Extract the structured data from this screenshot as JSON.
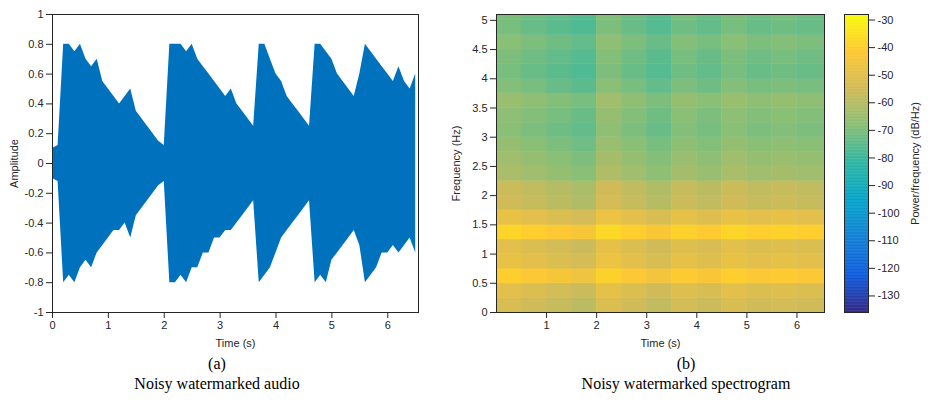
{
  "chart_data": [
    {
      "type": "area",
      "label": "(a)",
      "caption": "Noisy watermarked audio",
      "xlabel": "Time (s)",
      "ylabel": "Amplitude",
      "color": "#0072bd",
      "grid": false,
      "xlim": [
        0,
        6.55
      ],
      "xticks": [
        0,
        1,
        2,
        3,
        4,
        5,
        6
      ],
      "ylim": [
        -1,
        1
      ],
      "yticks": [
        -1,
        -0.8,
        -0.6,
        -0.4,
        -0.2,
        0,
        0.2,
        0.4,
        0.6,
        0.8,
        1
      ],
      "x": [
        0,
        0.1,
        0.2,
        0.3,
        0.4,
        0.5,
        0.6,
        0.7,
        0.8,
        0.9,
        1.0,
        1.1,
        1.2,
        1.3,
        1.4,
        1.5,
        1.6,
        1.7,
        1.8,
        1.9,
        2.0,
        2.1,
        2.2,
        2.3,
        2.4,
        2.5,
        2.6,
        2.7,
        2.8,
        2.9,
        3.0,
        3.1,
        3.2,
        3.3,
        3.4,
        3.5,
        3.6,
        3.7,
        3.8,
        3.9,
        4.0,
        4.1,
        4.2,
        4.3,
        4.4,
        4.5,
        4.6,
        4.7,
        4.8,
        4.9,
        5.0,
        5.1,
        5.2,
        5.3,
        5.4,
        5.5,
        5.6,
        5.7,
        5.8,
        5.9,
        6.0,
        6.1,
        6.2,
        6.3,
        6.4,
        6.5
      ],
      "upper": [
        0.1,
        0.12,
        0.8,
        0.8,
        0.75,
        0.8,
        0.7,
        0.65,
        0.7,
        0.55,
        0.5,
        0.45,
        0.4,
        0.45,
        0.5,
        0.35,
        0.3,
        0.25,
        0.2,
        0.15,
        0.12,
        0.8,
        0.8,
        0.8,
        0.75,
        0.8,
        0.7,
        0.65,
        0.6,
        0.55,
        0.5,
        0.45,
        0.5,
        0.4,
        0.35,
        0.3,
        0.25,
        0.8,
        0.8,
        0.7,
        0.6,
        0.55,
        0.45,
        0.4,
        0.35,
        0.3,
        0.25,
        0.8,
        0.8,
        0.75,
        0.7,
        0.6,
        0.55,
        0.5,
        0.45,
        0.6,
        0.8,
        0.75,
        0.7,
        0.65,
        0.6,
        0.55,
        0.65,
        0.55,
        0.5,
        0.6
      ],
      "lower": [
        -0.1,
        -0.12,
        -0.8,
        -0.75,
        -0.8,
        -0.7,
        -0.65,
        -0.7,
        -0.6,
        -0.55,
        -0.5,
        -0.45,
        -0.45,
        -0.4,
        -0.5,
        -0.35,
        -0.3,
        -0.25,
        -0.2,
        -0.15,
        -0.12,
        -0.8,
        -0.8,
        -0.75,
        -0.8,
        -0.7,
        -0.7,
        -0.6,
        -0.6,
        -0.5,
        -0.5,
        -0.45,
        -0.45,
        -0.4,
        -0.35,
        -0.3,
        -0.25,
        -0.8,
        -0.75,
        -0.7,
        -0.6,
        -0.5,
        -0.45,
        -0.4,
        -0.35,
        -0.3,
        -0.25,
        -0.8,
        -0.75,
        -0.8,
        -0.65,
        -0.6,
        -0.55,
        -0.5,
        -0.45,
        -0.55,
        -0.8,
        -0.75,
        -0.7,
        -0.6,
        -0.6,
        -0.55,
        -0.6,
        -0.55,
        -0.5,
        -0.6
      ]
    },
    {
      "type": "heatmap",
      "label": "(b)",
      "caption": "Noisy watermarked spectrogram",
      "xlabel": "Time (s)",
      "ylabel": "Frequency (Hz)",
      "grid": false,
      "xlim": [
        0,
        6.55
      ],
      "xticks": [
        1,
        2,
        3,
        4,
        5,
        6
      ],
      "ylim": [
        0,
        5.1
      ],
      "yticks": [
        0,
        0.5,
        1,
        1.5,
        2,
        2.5,
        3,
        3.5,
        4,
        4.5,
        5
      ],
      "x_bins": [
        0,
        0.5,
        1.0,
        1.5,
        2.0,
        2.5,
        3.0,
        3.5,
        4.0,
        4.5,
        5.0,
        5.5,
        6.0,
        6.55
      ],
      "y_bins": [
        0,
        0.25,
        0.5,
        0.75,
        1.0,
        1.25,
        1.5,
        1.75,
        2.0,
        2.25,
        2.5,
        2.75,
        3.0,
        3.25,
        3.5,
        3.75,
        4.0,
        4.25,
        4.5,
        4.75,
        5.0,
        5.1
      ],
      "cells": [
        [
          -53,
          -55,
          -57,
          -59,
          -52,
          -55,
          -58,
          -54,
          -56,
          -53,
          -55,
          -54,
          -55
        ],
        [
          -50,
          -52,
          -54,
          -56,
          -49,
          -52,
          -55,
          -51,
          -53,
          -50,
          -52,
          -51,
          -52
        ],
        [
          -40,
          -42,
          -44,
          -46,
          -39,
          -42,
          -45,
          -41,
          -43,
          -40,
          -42,
          -41,
          -42
        ],
        [
          -48,
          -50,
          -52,
          -54,
          -47,
          -50,
          -53,
          -49,
          -51,
          -48,
          -50,
          -49,
          -50
        ],
        [
          -50,
          -52,
          -54,
          -56,
          -49,
          -52,
          -55,
          -51,
          -53,
          -50,
          -52,
          -51,
          -52
        ],
        [
          -38,
          -40,
          -42,
          -44,
          -37,
          -40,
          -43,
          -39,
          -41,
          -38,
          -40,
          -39,
          -40
        ],
        [
          -48,
          -50,
          -52,
          -54,
          -47,
          -50,
          -53,
          -49,
          -51,
          -48,
          -50,
          -49,
          -50
        ],
        [
          -55,
          -57,
          -59,
          -61,
          -54,
          -57,
          -60,
          -56,
          -58,
          -55,
          -57,
          -56,
          -57
        ],
        [
          -56,
          -58,
          -60,
          -62,
          -55,
          -58,
          -61,
          -57,
          -59,
          -56,
          -58,
          -57,
          -58
        ],
        [
          -62,
          -64,
          -66,
          -68,
          -61,
          -64,
          -67,
          -63,
          -65,
          -62,
          -64,
          -63,
          -64
        ],
        [
          -64,
          -66,
          -68,
          -70,
          -63,
          -66,
          -69,
          -65,
          -67,
          -64,
          -66,
          -65,
          -66
        ],
        [
          -66,
          -68,
          -70,
          -72,
          -65,
          -68,
          -71,
          -67,
          -69,
          -66,
          -68,
          -67,
          -68
        ],
        [
          -68,
          -70,
          -72,
          -74,
          -67,
          -70,
          -73,
          -69,
          -71,
          -68,
          -70,
          -69,
          -70
        ],
        [
          -67,
          -69,
          -71,
          -73,
          -66,
          -69,
          -72,
          -68,
          -70,
          -67,
          -69,
          -68,
          -69
        ],
        [
          -65,
          -67,
          -69,
          -71,
          -64,
          -67,
          -70,
          -66,
          -68,
          -65,
          -67,
          -66,
          -67
        ],
        [
          -69,
          -71,
          -73,
          -75,
          -68,
          -71,
          -74,
          -70,
          -72,
          -69,
          -71,
          -70,
          -71
        ],
        [
          -71,
          -73,
          -75,
          -77,
          -70,
          -73,
          -76,
          -72,
          -74,
          -71,
          -73,
          -72,
          -73
        ],
        [
          -70,
          -72,
          -74,
          -76,
          -69,
          -72,
          -75,
          -71,
          -73,
          -70,
          -72,
          -71,
          -72
        ],
        [
          -68,
          -70,
          -72,
          -74,
          -67,
          -70,
          -73,
          -69,
          -71,
          -68,
          -70,
          -69,
          -70
        ],
        [
          -71,
          -73,
          -75,
          -77,
          -70,
          -73,
          -76,
          -72,
          -74,
          -71,
          -73,
          -72,
          -73
        ],
        [
          -70,
          -72,
          -74,
          -76,
          -69,
          -72,
          -75,
          -71,
          -73,
          -70,
          -72,
          -71,
          -72
        ]
      ],
      "colorbar": {
        "label": "Power/frequency (dB/Hz)",
        "range": [
          -136,
          -28
        ],
        "ticks": [
          -130,
          -120,
          -110,
          -100,
          -90,
          -80,
          -70,
          -60,
          -50,
          -40,
          -30
        ]
      }
    }
  ]
}
